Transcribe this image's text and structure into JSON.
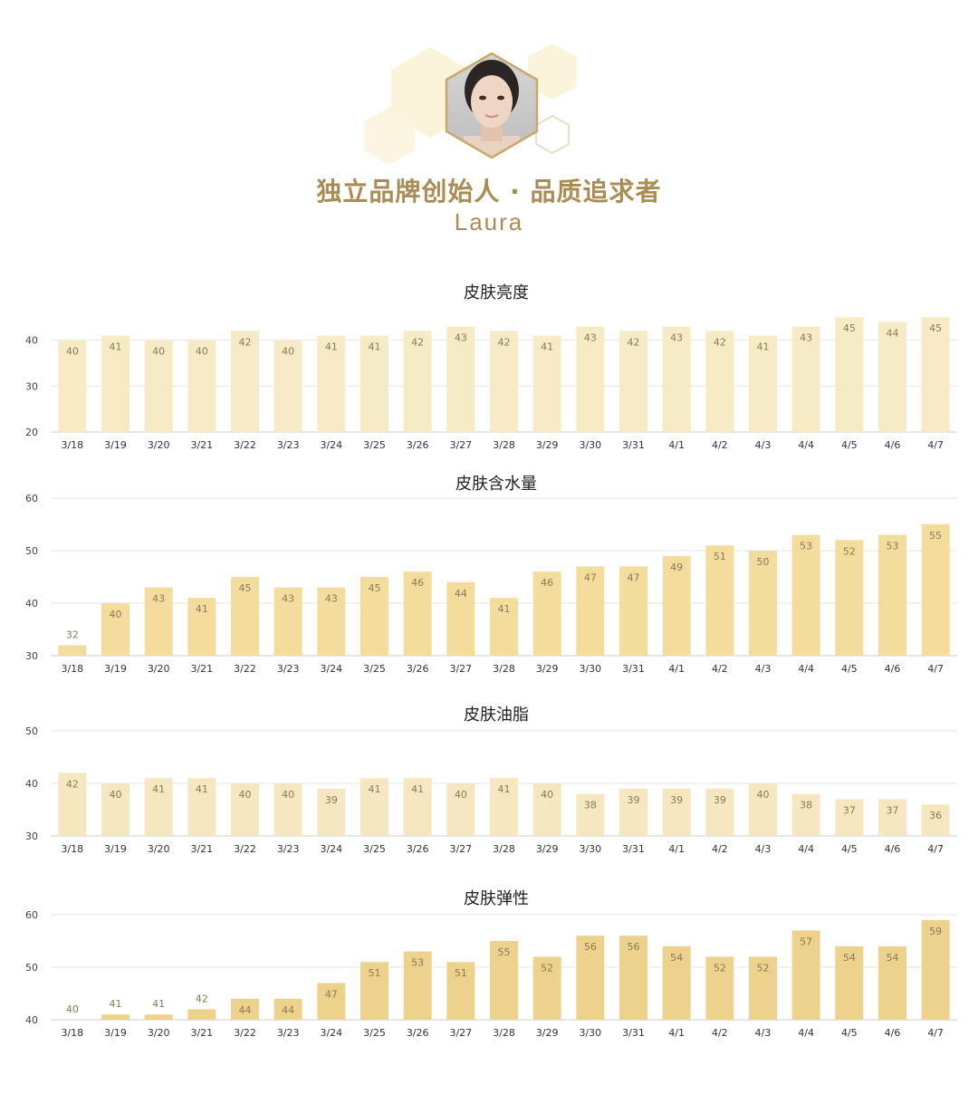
{
  "header": {
    "title_cn": "独立品牌创始人 · 品质追求者",
    "title_en": "Laura",
    "avatar_icon": "portrait-avatar-icon",
    "hex_color": "#fbf3da",
    "accent_color": "#a98d55"
  },
  "chart_data": [
    {
      "type": "bar",
      "title": "皮肤亮度",
      "categories": [
        "3/18",
        "3/19",
        "3/20",
        "3/21",
        "3/22",
        "3/23",
        "3/24",
        "3/25",
        "3/26",
        "3/27",
        "3/28",
        "3/29",
        "3/30",
        "3/31",
        "4/1",
        "4/2",
        "4/3",
        "4/4",
        "4/5",
        "4/6",
        "4/7"
      ],
      "values": [
        40,
        41,
        40,
        40,
        42,
        40,
        41,
        41,
        42,
        43,
        42,
        41,
        43,
        42,
        43,
        42,
        41,
        43,
        45,
        44,
        45
      ],
      "yticks": [
        20,
        30,
        40
      ],
      "ylim": [
        20,
        48
      ],
      "color": "#f7ebc6",
      "grid": true
    },
    {
      "type": "bar",
      "title": "皮肤含水量",
      "categories": [
        "3/18",
        "3/19",
        "3/20",
        "3/21",
        "3/22",
        "3/23",
        "3/24",
        "3/25",
        "3/26",
        "3/27",
        "3/28",
        "3/29",
        "3/30",
        "3/31",
        "4/1",
        "4/2",
        "4/3",
        "4/4",
        "4/5",
        "4/6",
        "4/7"
      ],
      "values": [
        32,
        40,
        43,
        41,
        45,
        43,
        43,
        45,
        46,
        44,
        41,
        46,
        47,
        47,
        49,
        51,
        50,
        53,
        52,
        53,
        55
      ],
      "yticks": [
        30,
        40,
        50,
        60
      ],
      "ylim": [
        30,
        60
      ],
      "color": "#f4dd9c",
      "grid": true
    },
    {
      "type": "bar",
      "title": "皮肤油脂",
      "categories": [
        "3/18",
        "3/19",
        "3/20",
        "3/21",
        "3/22",
        "3/23",
        "3/24",
        "3/25",
        "3/26",
        "3/27",
        "3/28",
        "3/29",
        "3/30",
        "3/31",
        "4/1",
        "4/2",
        "4/3",
        "4/4",
        "4/5",
        "4/6",
        "4/7"
      ],
      "values": [
        42,
        40,
        41,
        41,
        40,
        40,
        39,
        41,
        41,
        40,
        41,
        40,
        38,
        39,
        39,
        39,
        40,
        38,
        37,
        37,
        36
      ],
      "yticks": [
        30,
        40,
        50
      ],
      "ylim": [
        30,
        50
      ],
      "color": "#f5e8c0",
      "grid": true
    },
    {
      "type": "bar",
      "title": "皮肤弹性",
      "categories": [
        "3/18",
        "3/19",
        "3/20",
        "3/21",
        "3/22",
        "3/23",
        "3/24",
        "3/25",
        "3/26",
        "3/27",
        "3/28",
        "3/29",
        "3/30",
        "3/31",
        "4/1",
        "4/2",
        "4/3",
        "4/4",
        "4/5",
        "4/6",
        "4/7"
      ],
      "values": [
        40,
        41,
        41,
        42,
        44,
        44,
        47,
        51,
        53,
        51,
        55,
        52,
        56,
        56,
        54,
        52,
        52,
        57,
        54,
        54,
        59
      ],
      "yticks": [
        40,
        50,
        60
      ],
      "ylim": [
        40,
        60
      ],
      "color": "#ecd28c",
      "grid": true
    }
  ]
}
